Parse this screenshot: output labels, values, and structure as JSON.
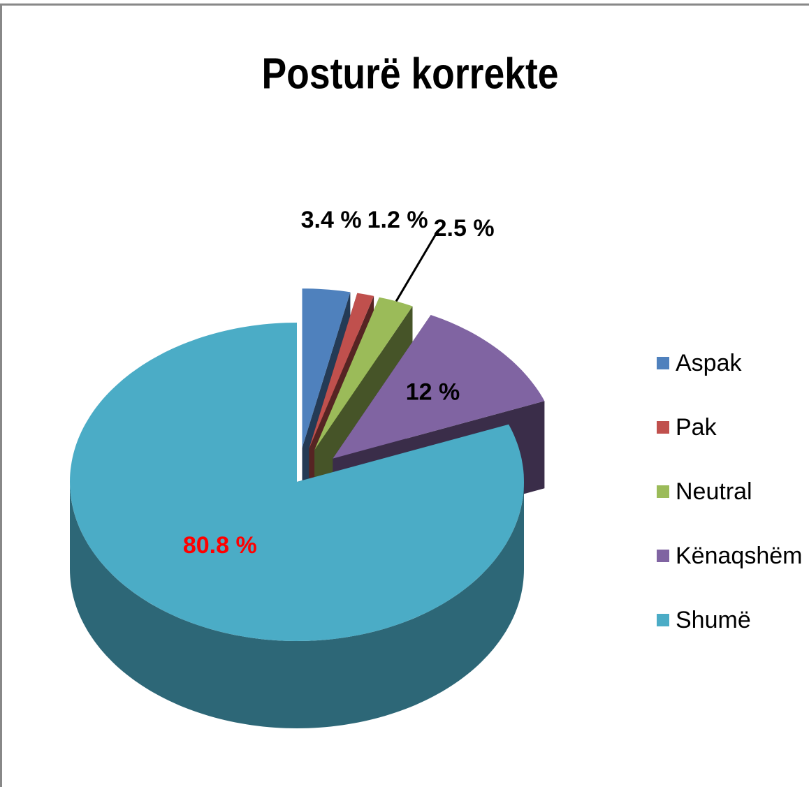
{
  "chart_data": {
    "type": "pie",
    "title": "Posturë korrekte",
    "categories": [
      "Aspak",
      "Pak",
      "Neutral",
      "Kënaqshëm",
      "Shumë"
    ],
    "values": [
      3.4,
      1.2,
      2.5,
      12,
      80.8
    ],
    "value_labels": [
      "3.4 %",
      "1.2 %",
      "2.5 %",
      "12 %",
      "80.8 %"
    ],
    "value_label_colors": [
      "#000000",
      "#000000",
      "#000000",
      "#000000",
      "#ff0000"
    ],
    "colors": [
      "#4f81bd",
      "#c0504d",
      "#9bbb59",
      "#8064a2",
      "#4bacc6"
    ],
    "legend": "right"
  }
}
